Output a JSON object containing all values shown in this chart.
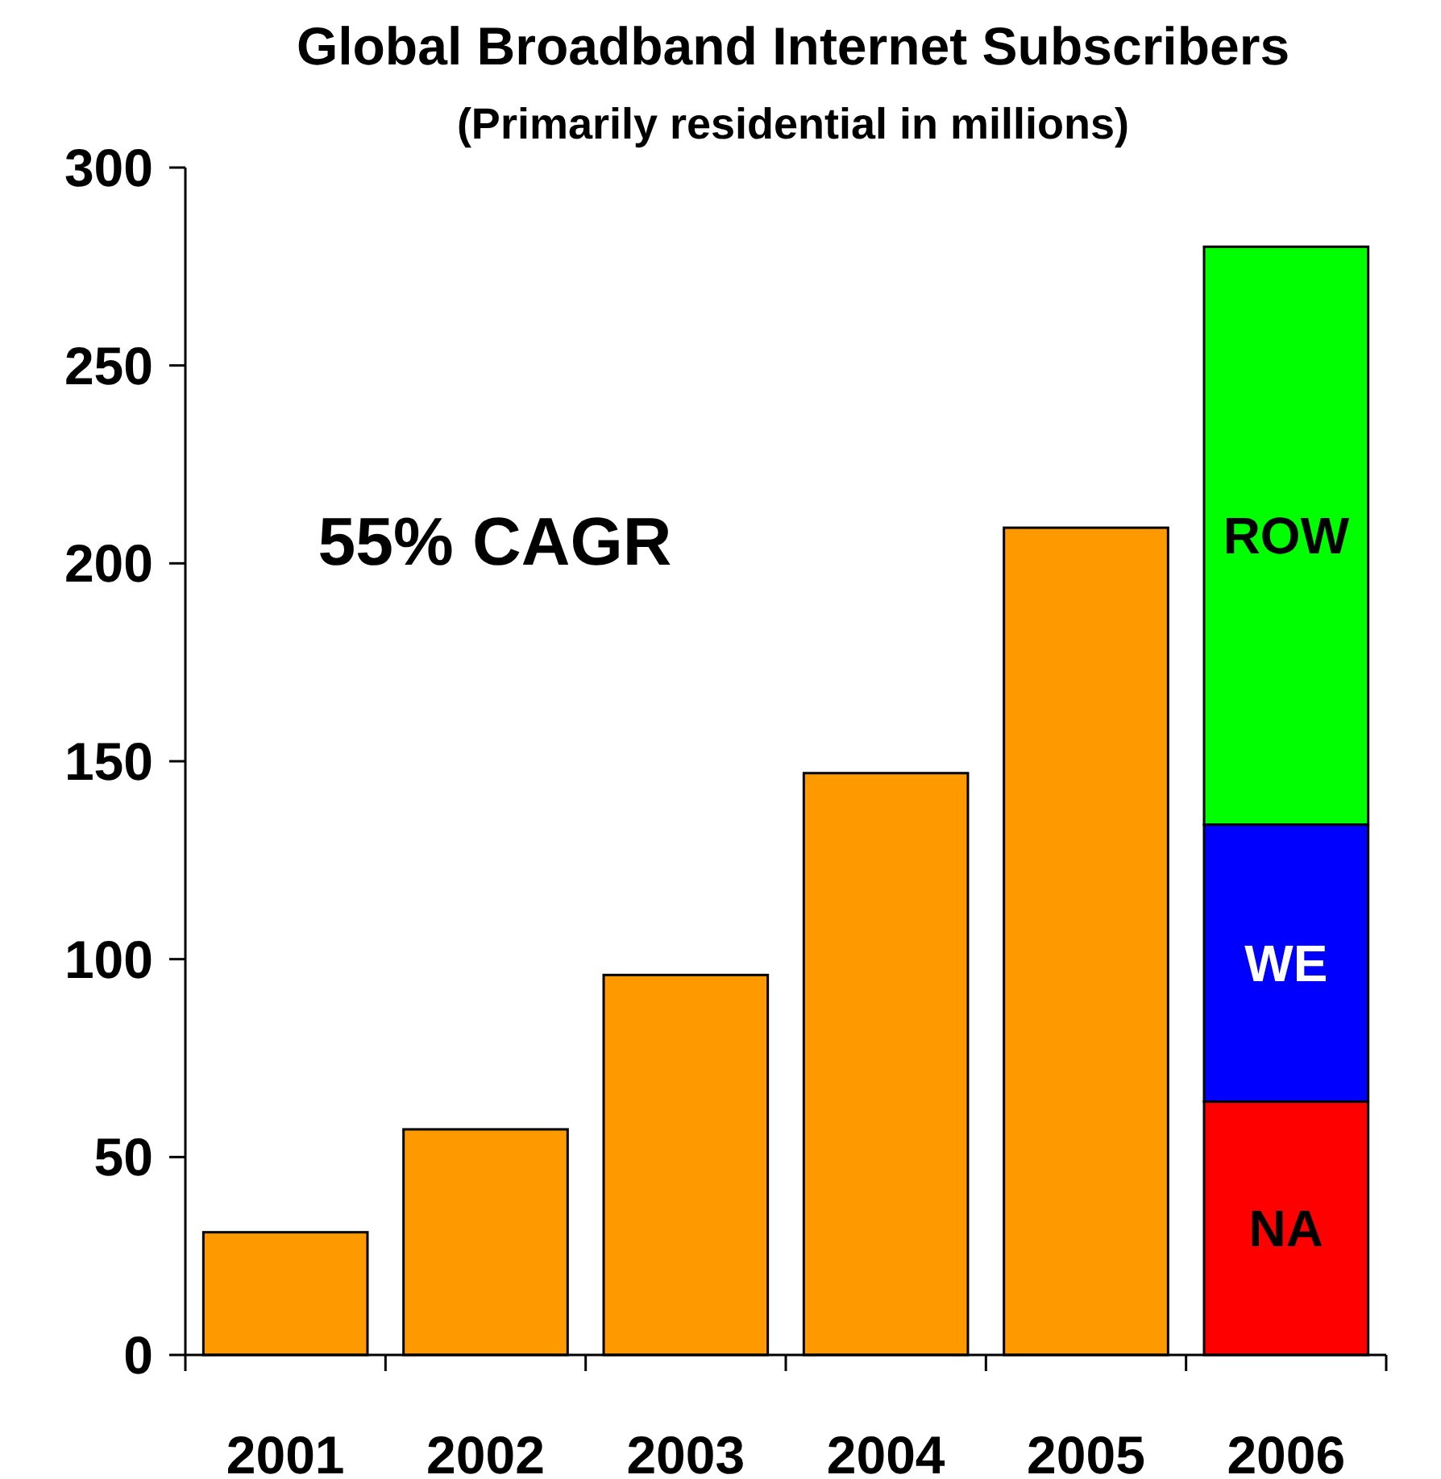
{
  "chart_data": {
    "type": "bar",
    "title": "Global Broadband Internet Subscribers",
    "subtitle": "(Primarily residential in millions)",
    "categories": [
      "2001",
      "2002",
      "2003",
      "2004",
      "2005",
      "2006"
    ],
    "stacked": true,
    "series": [
      {
        "color": "#ff9900",
        "values": [
          31,
          57,
          96,
          147,
          209,
          null
        ]
      },
      {
        "name": "NA",
        "color": "#ff0000",
        "values": [
          null,
          null,
          null,
          null,
          null,
          64
        ]
      },
      {
        "name": "WE",
        "color": "#0000ff",
        "values": [
          null,
          null,
          null,
          null,
          null,
          70
        ]
      },
      {
        "name": "ROW",
        "color": "#00ff00",
        "values": [
          null,
          null,
          null,
          null,
          null,
          146
        ]
      }
    ],
    "ylim": [
      0,
      300
    ],
    "yticks": [
      0,
      50,
      100,
      150,
      200,
      250,
      300
    ],
    "grid": false,
    "legend": false,
    "annotations": [
      "55% CAGR"
    ]
  }
}
